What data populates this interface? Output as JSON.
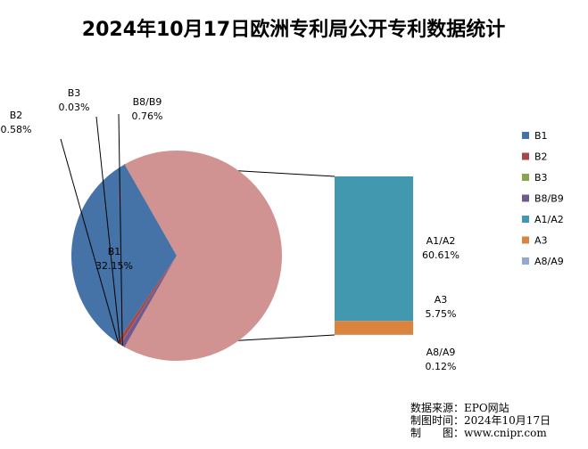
{
  "chart_data": {
    "type": "pie",
    "subtype": "bar-of-pie",
    "title": "2024年10月17日欧洲专利局公开专利数据统计",
    "main_slices": [
      {
        "name": "B1",
        "label": "B1",
        "value": 32.15,
        "value_label": "32.15%",
        "color": "#4572A7"
      },
      {
        "name": "B2",
        "label": "B2",
        "value": 0.58,
        "value_label": "0.58%",
        "color": "#AA4643"
      },
      {
        "name": "B3",
        "label": "B3",
        "value": 0.03,
        "value_label": "0.03%",
        "color": "#89A54E"
      },
      {
        "name": "B8/B9",
        "label": "B8/B9",
        "value": 0.76,
        "value_label": "0.76%",
        "color": "#71588F"
      }
    ],
    "other_slice": {
      "value": 66.48,
      "color": "#D09391"
    },
    "bar_stack": [
      {
        "name": "A1/A2",
        "label": "A1/A2",
        "value": 60.61,
        "value_label": "60.61%",
        "color": "#4198AF"
      },
      {
        "name": "A3",
        "label": "A3",
        "value": 5.75,
        "value_label": "5.75%",
        "color": "#DB843D"
      },
      {
        "name": "A8/A9",
        "label": "A8/A9",
        "value": 0.12,
        "value_label": "0.12%",
        "color": "#93A9CF"
      }
    ],
    "legend": {
      "position": "right",
      "entries": [
        {
          "name": "B1",
          "color": "#4572A7"
        },
        {
          "name": "B2",
          "color": "#AA4643"
        },
        {
          "name": "B3",
          "color": "#89A54E"
        },
        {
          "name": "B8/B9",
          "color": "#71588F"
        },
        {
          "name": "A1/A2",
          "color": "#4198AF"
        },
        {
          "name": "A3",
          "color": "#DB843D"
        },
        {
          "name": "A8/A9",
          "color": "#93A9CF"
        }
      ]
    }
  },
  "footer": {
    "line1": "数据来源：EPO网站",
    "line2": "制图时间：2024年10月17日",
    "line3": "制　　图：www.cnipr.com"
  }
}
